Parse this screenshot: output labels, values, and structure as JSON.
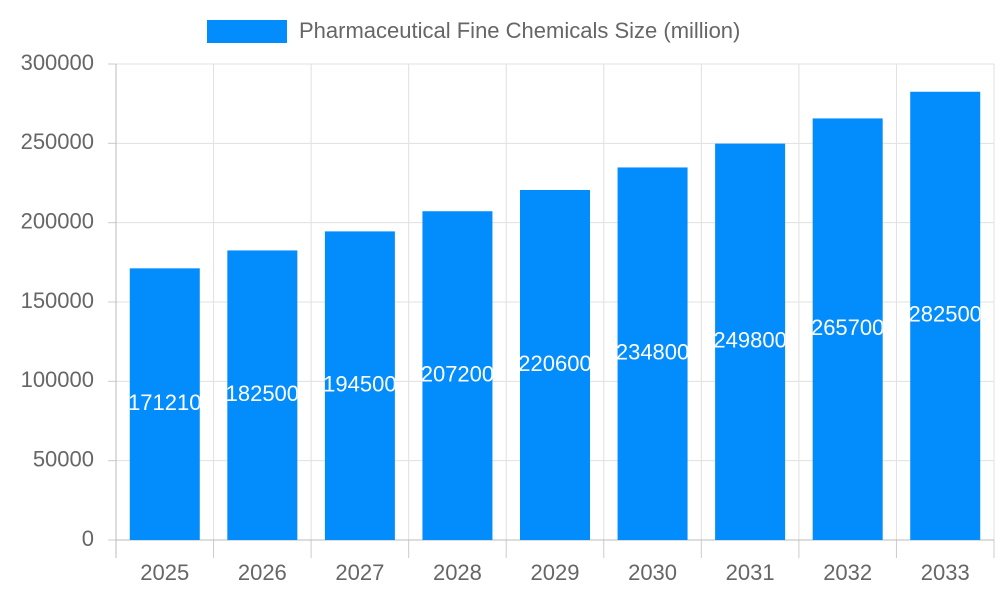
{
  "chart_data": {
    "type": "bar",
    "categories": [
      "2025",
      "2026",
      "2027",
      "2028",
      "2029",
      "2030",
      "2031",
      "2032",
      "2033"
    ],
    "series": [
      {
        "name": "Pharmaceutical Fine Chemicals Size (million)",
        "color": "#038cfc",
        "values": [
          171210,
          182500,
          194500,
          207200,
          220600,
          234800,
          249800,
          265700,
          282500
        ]
      }
    ],
    "ylim": [
      0,
      300000
    ],
    "yticks": [
      0,
      50000,
      100000,
      150000,
      200000,
      250000,
      300000
    ],
    "grid": true,
    "legend": "top",
    "data_labels": true
  }
}
